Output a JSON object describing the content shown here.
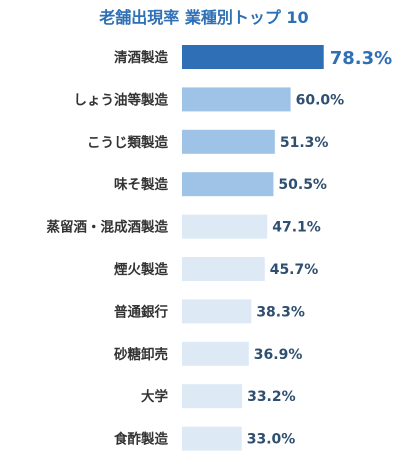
{
  "chart_data": {
    "type": "bar",
    "orientation": "horizontal",
    "title": "老舗出現率 業種別トップ 10",
    "categories": [
      "清酒製造",
      "しょう油等製造",
      "こうじ類製造",
      "味そ製造",
      "蒸留酒・混成酒製造",
      "煙火製造",
      "普通銀行",
      "砂糖卸売",
      "大学",
      "食酢製造"
    ],
    "values": [
      78.3,
      60.0,
      51.3,
      50.5,
      47.1,
      45.7,
      38.3,
      36.9,
      33.2,
      33.0
    ],
    "value_labels": [
      "78.3%",
      "60.0%",
      "51.3%",
      "50.5%",
      "47.1%",
      "45.7%",
      "38.3%",
      "36.9%",
      "33.2%",
      "33.0%"
    ],
    "xlim": [
      0,
      100
    ],
    "grid": false,
    "legend": "none"
  },
  "colors": {
    "title": "#2e6fb5",
    "top_bar": "#2e6fb5",
    "mid_bar": "#9ec3e6",
    "low_bar": "#dde9f5",
    "top_value": "#2e6fb5",
    "value": "#2f4f70",
    "category": "#333333"
  }
}
